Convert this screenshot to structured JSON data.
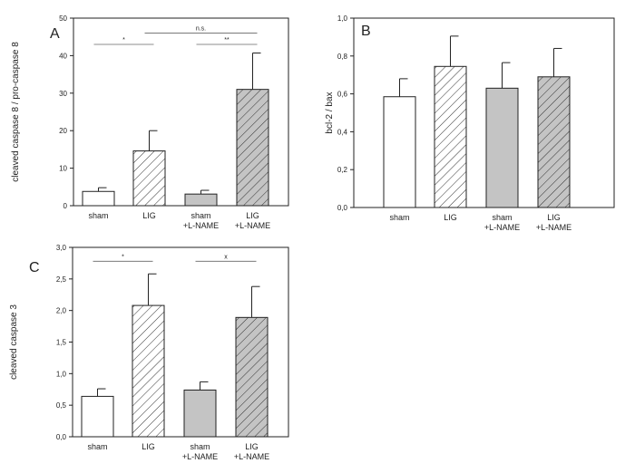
{
  "chart_data": [
    {
      "type": "bar",
      "panel_label": "A",
      "ylabel": "cleaved caspase 8 / pro-caspase 8",
      "ylim": [
        0,
        50
      ],
      "yticks": [
        "0",
        "10",
        "20",
        "30",
        "40",
        "50"
      ],
      "categories": [
        {
          "line1": "sham",
          "line2": ""
        },
        {
          "line1": "LIG",
          "line2": ""
        },
        {
          "line1": "sham",
          "line2": "+L-NAME"
        },
        {
          "line1": "LIG",
          "line2": "+L-NAME"
        }
      ],
      "values": [
        3.8,
        14.6,
        3.1,
        31.0
      ],
      "errors": [
        1.0,
        5.4,
        1.0,
        9.7
      ],
      "styles": [
        "open",
        "hatched",
        "grey",
        "grey-hatched"
      ],
      "significance": [
        {
          "from": 0,
          "to": 1,
          "label": "*",
          "y": 43
        },
        {
          "from": 1,
          "to": 3,
          "label": "n.s.",
          "y": 46
        },
        {
          "from": 2,
          "to": 3,
          "label": "**",
          "y": 43
        }
      ]
    },
    {
      "type": "bar",
      "panel_label": "B",
      "ylabel": "bcl-2 / bax",
      "ylim": [
        0,
        1.0
      ],
      "yticks": [
        "0,0",
        "0,2",
        "0,4",
        "0,6",
        "0,8",
        "1,0"
      ],
      "categories": [
        {
          "line1": "sham",
          "line2": ""
        },
        {
          "line1": "LIG",
          "line2": ""
        },
        {
          "line1": "sham",
          "line2": "+L-NAME"
        },
        {
          "line1": "LIG",
          "line2": "+L-NAME"
        }
      ],
      "values": [
        0.585,
        0.745,
        0.63,
        0.69
      ],
      "errors": [
        0.095,
        0.16,
        0.135,
        0.15
      ],
      "styles": [
        "open",
        "hatched",
        "grey",
        "grey-hatched"
      ],
      "significance": []
    },
    {
      "type": "bar",
      "panel_label": "C",
      "ylabel": "cleaved caspase 3",
      "ylim": [
        0,
        3.0
      ],
      "yticks": [
        "0,0",
        "0,5",
        "1,0",
        "1,5",
        "2,0",
        "2,5",
        "3,0"
      ],
      "categories": [
        {
          "line1": "sham",
          "line2": ""
        },
        {
          "line1": "LIG",
          "line2": ""
        },
        {
          "line1": "sham",
          "line2": "+L-NAME"
        },
        {
          "line1": "LIG",
          "line2": "+L-NAME"
        }
      ],
      "values": [
        0.64,
        2.08,
        0.74,
        1.89
      ],
      "errors": [
        0.12,
        0.5,
        0.13,
        0.49
      ],
      "styles": [
        "open",
        "hatched",
        "grey",
        "grey-hatched"
      ],
      "significance": [
        {
          "from": 0,
          "to": 1,
          "label": "*",
          "y": 2.78
        },
        {
          "from": 2,
          "to": 3,
          "label": "x",
          "y": 2.78
        }
      ]
    }
  ]
}
